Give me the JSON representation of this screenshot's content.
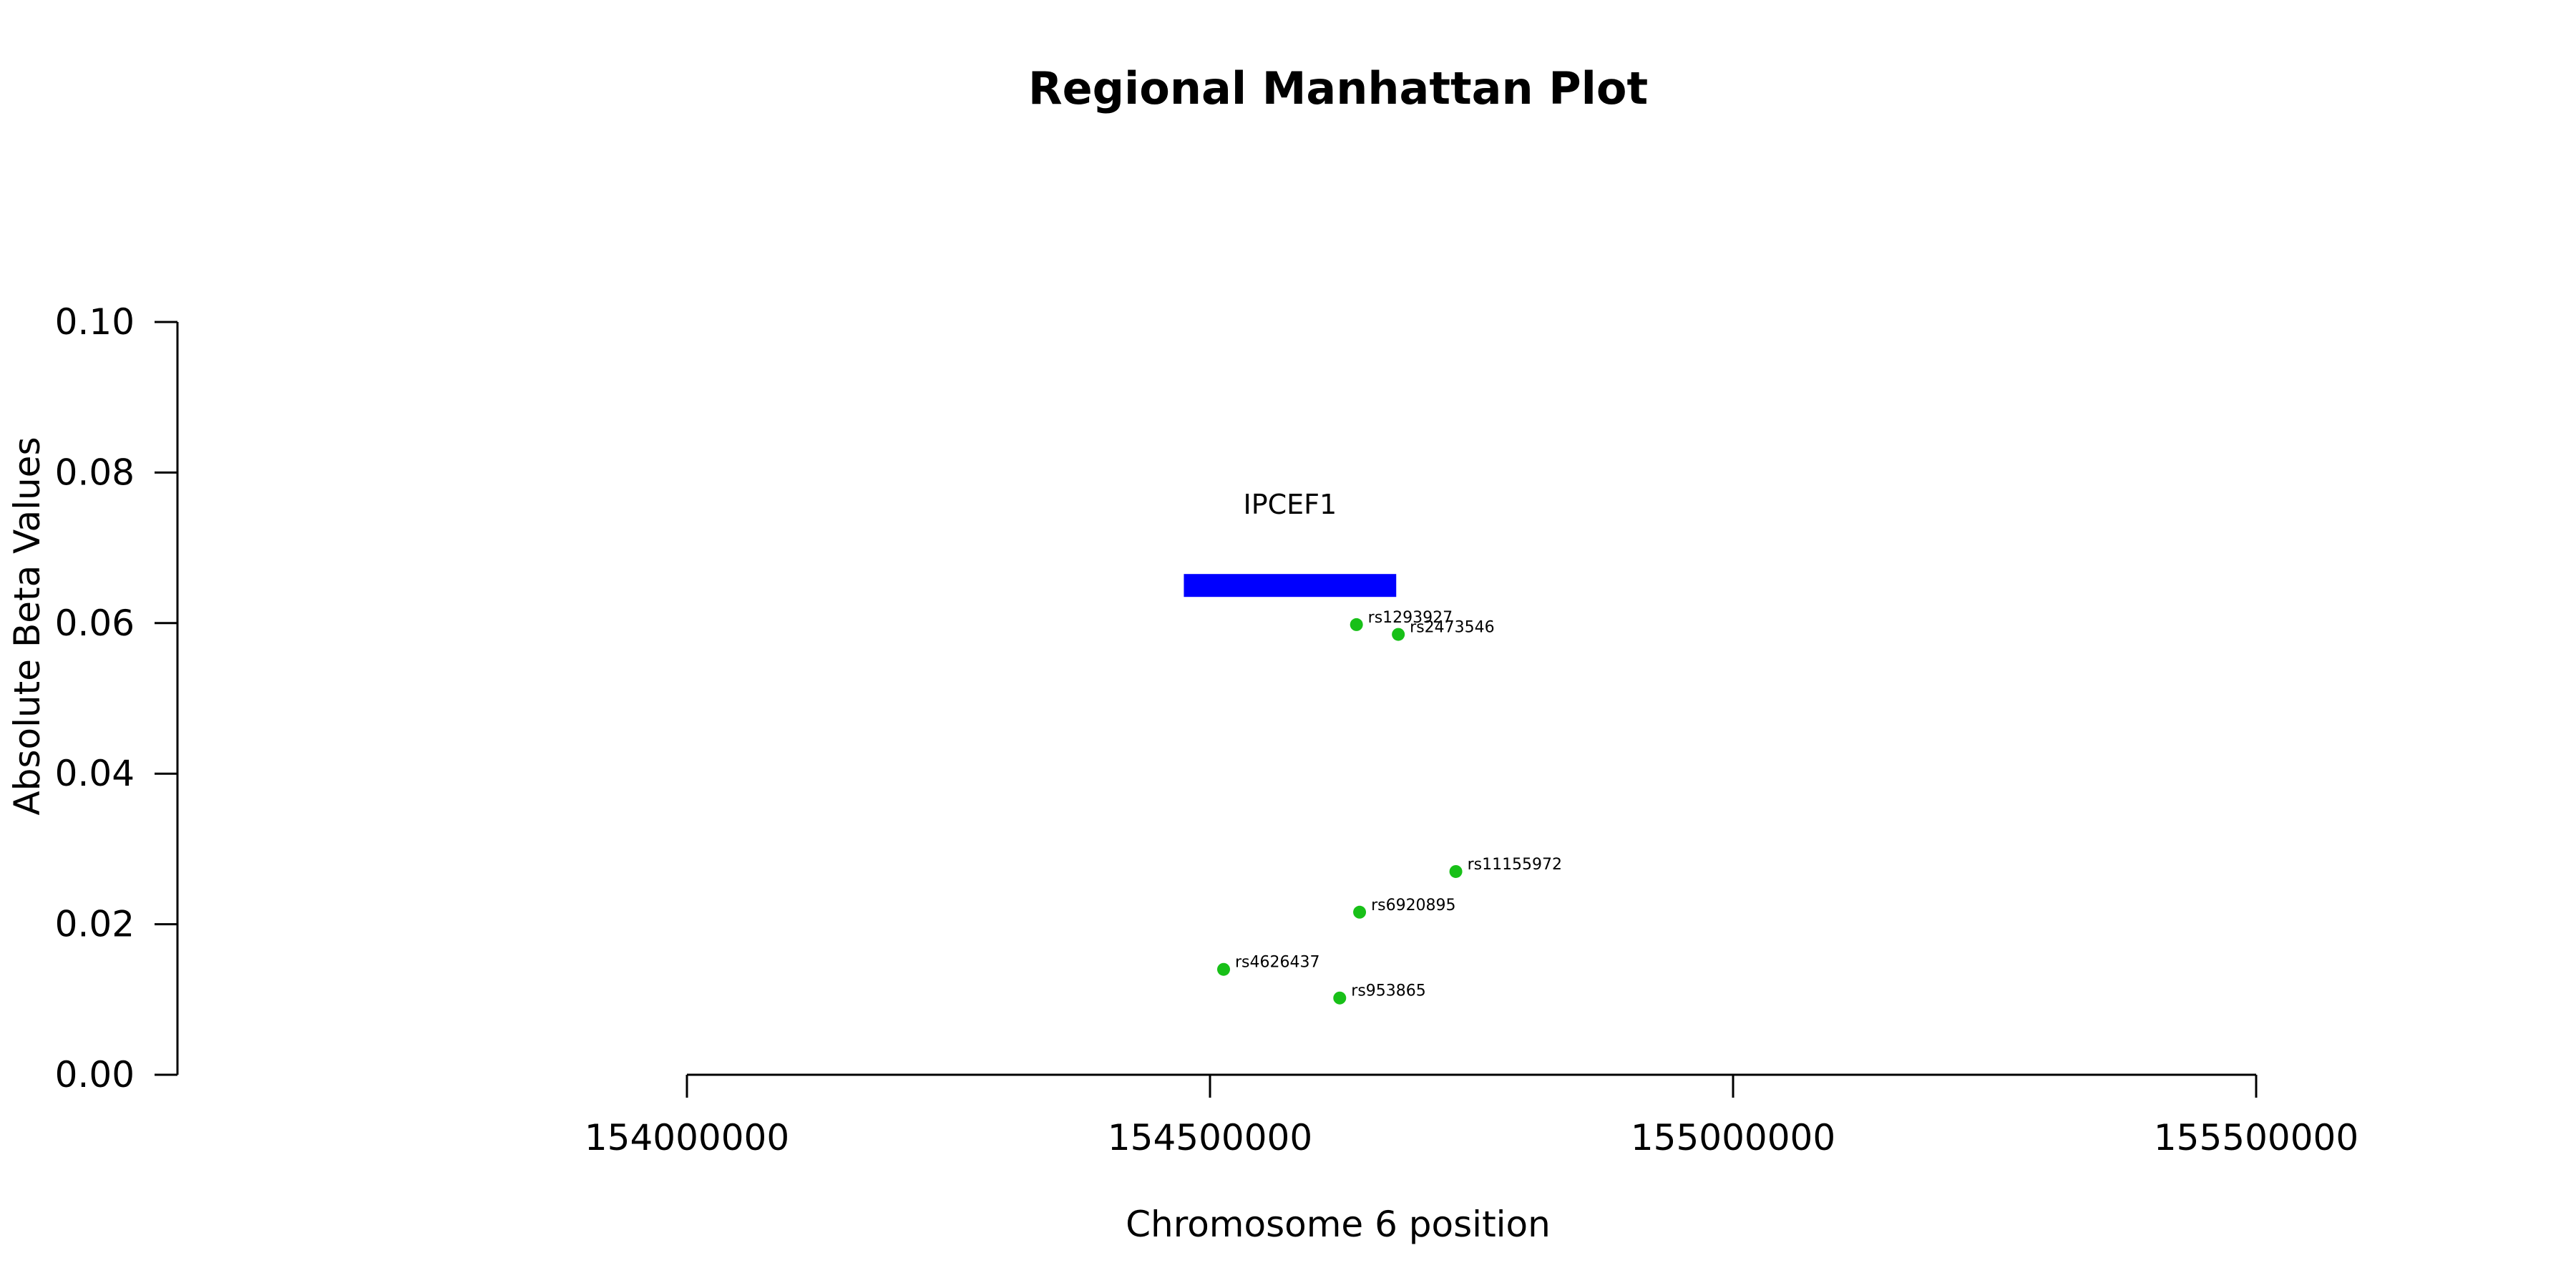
{
  "chart_data": {
    "type": "scatter",
    "title": "Regional Manhattan Plot",
    "xlabel": "Chromosome 6 position",
    "ylabel": "Absolute Beta Values",
    "xlim": [
      154000000,
      155500000
    ],
    "ylim": [
      0,
      0.1
    ],
    "x_ticks": [
      "154000000",
      "154500000",
      "155000000",
      "155500000"
    ],
    "y_ticks": [
      "0.00",
      "0.02",
      "0.04",
      "0.06",
      "0.08",
      "0.10"
    ],
    "gene": {
      "name": "IPCEF1",
      "start": 154475000,
      "end": 154678000,
      "y": 0.065
    },
    "points": [
      {
        "label": "rs1293927",
        "x": 154640000,
        "y": 0.0598
      },
      {
        "label": "rs2473546",
        "x": 154680000,
        "y": 0.0585
      },
      {
        "label": "rs11155972",
        "x": 154735000,
        "y": 0.027
      },
      {
        "label": "rs6920895",
        "x": 154643000,
        "y": 0.0216
      },
      {
        "label": "rs4626437",
        "x": 154513000,
        "y": 0.014
      },
      {
        "label": "rs953865",
        "x": 154624000,
        "y": 0.0102
      }
    ],
    "point_color": "#18c018",
    "gene_color": "#0000ff",
    "grid": false,
    "legend": false
  }
}
